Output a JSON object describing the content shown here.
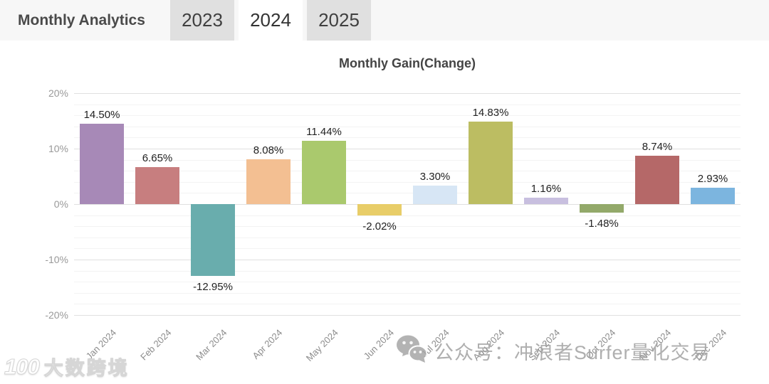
{
  "header": {
    "title": "Monthly Analytics",
    "tabs": [
      {
        "label": "2023",
        "active": false
      },
      {
        "label": "2024",
        "active": true
      },
      {
        "label": "2025",
        "active": false
      }
    ]
  },
  "chart_data": {
    "type": "bar",
    "title": "Monthly Gain(Change)",
    "categories": [
      "Jan 2024",
      "Feb 2024",
      "Mar 2024",
      "Apr 2024",
      "May 2024",
      "Jun 2024",
      "Jul 2024",
      "Aug 2024",
      "Sep 2024",
      "Oct 2024",
      "Nov 2024",
      "Dec 2024"
    ],
    "values": [
      14.5,
      6.65,
      -12.95,
      8.08,
      11.44,
      -2.02,
      3.3,
      14.83,
      1.16,
      -1.48,
      8.74,
      2.93
    ],
    "value_labels": [
      "14.50%",
      "6.65%",
      "-12.95%",
      "8.08%",
      "11.44%",
      "-2.02%",
      "3.30%",
      "14.83%",
      "1.16%",
      "-1.48%",
      "8.74%",
      "2.93%"
    ],
    "bar_colors": [
      "#a789b7",
      "#c77e7f",
      "#69adad",
      "#f3bf92",
      "#aac96d",
      "#e8cd68",
      "#d7e6f5",
      "#bcbd62",
      "#c8bfdf",
      "#93a96a",
      "#b56868",
      "#7cb5df"
    ],
    "xlabel": "",
    "ylabel": "",
    "ylim": [
      -20,
      20
    ],
    "y_tick_labels": [
      "20%",
      "10%",
      "0%",
      "-10%",
      "-20%"
    ],
    "minor_grid_step": 2,
    "major_grid_step": 10,
    "grid": true,
    "legend": null
  },
  "watermarks": {
    "center_icon": "wechat-icon",
    "center_text": "公众号：冲浪者Surfer量化交易",
    "corner_logo_mark": "100",
    "corner_logo_text": "大数跨境"
  },
  "colors": {
    "header_bg": "#f7f7f7",
    "tab_inactive_bg": "#e0e0e0",
    "tab_active_bg": "#ffffff",
    "grid_major": "#e0e0e0",
    "grid_minor": "#f3f3f3",
    "axis_text": "#999999",
    "watermark_text": "#a2a2a2"
  }
}
